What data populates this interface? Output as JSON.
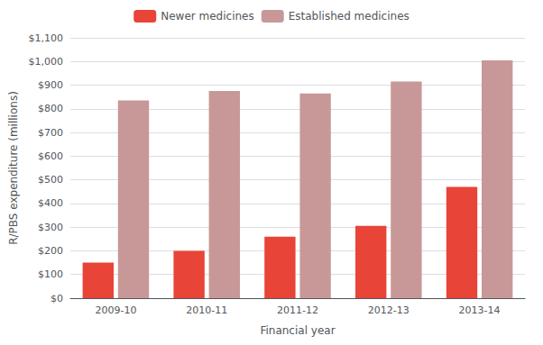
{
  "chart_data": {
    "type": "bar",
    "categories": [
      "2009-10",
      "2010-11",
      "2011-12",
      "2012-13",
      "2013-14"
    ],
    "series": [
      {
        "name": "Newer medicines",
        "color": "#e84437",
        "values": [
          150,
          200,
          260,
          305,
          470
        ]
      },
      {
        "name": "Established medicines",
        "color": "#c89898",
        "values": [
          835,
          875,
          865,
          915,
          1005
        ]
      }
    ],
    "xlabel": "Financial year",
    "ylabel": "R/PBS expenditure (millions)",
    "ylim": [
      0,
      1100
    ],
    "yticks": [
      {
        "value": 0,
        "label": "$0"
      },
      {
        "value": 100,
        "label": "$100"
      },
      {
        "value": 200,
        "label": "$200"
      },
      {
        "value": 300,
        "label": "$300"
      },
      {
        "value": 400,
        "label": "$400"
      },
      {
        "value": 500,
        "label": "$500"
      },
      {
        "value": 600,
        "label": "$600"
      },
      {
        "value": 700,
        "label": "$700"
      },
      {
        "value": 800,
        "label": "$800"
      },
      {
        "value": 900,
        "label": "$900"
      },
      {
        "value": 1000,
        "label": "$1,000"
      },
      {
        "value": 1100,
        "label": "$1,100"
      }
    ],
    "grid": true,
    "legend": "top"
  }
}
